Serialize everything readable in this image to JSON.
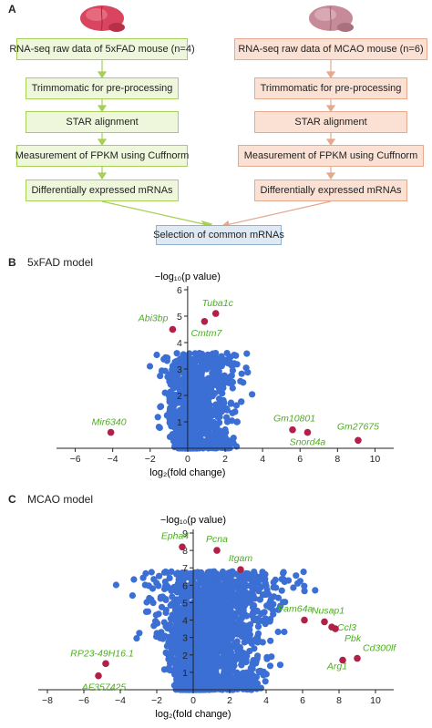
{
  "panel_a": {
    "letter": "A",
    "left_flow": [
      "RNA-seq raw data of 5xFAD mouse (n=4)",
      "Trimmomatic for pre-processing",
      "STAR alignment",
      "Measurement of FPKM using Cuffnorm",
      "Differentially expressed mRNAs"
    ],
    "right_flow": [
      "RNA-seq raw data of MCAO mouse (n=6)",
      "Trimmomatic for pre-processing",
      "STAR alignment",
      "Measurement of FPKM using Cuffnorm",
      "Differentially expressed mRNAs"
    ],
    "merge_box": "Selection of common mRNAs",
    "brain_colors": {
      "left": "#d9445e",
      "right": "#c78a99"
    }
  },
  "panel_b": {
    "letter": "B",
    "title": "5xFAD model"
  },
  "panel_c": {
    "letter": "C",
    "title": "MCAO model"
  },
  "colors": {
    "point": "#3b6fd4",
    "highlight": "#b2204a",
    "label": "#4caf1f",
    "green_fill": "#eef7dc",
    "pink_fill": "#fbe0d4",
    "blue_fill": "#dfe9f3"
  },
  "chart_data": [
    {
      "type": "scatter",
      "title": "",
      "xlabel": "log₂(fold change)",
      "ylabel": "−log₁₀(p value)",
      "xlim": [
        -7,
        11
      ],
      "ylim": [
        0,
        6
      ],
      "xticks": [
        -6,
        -4,
        -2,
        0,
        2,
        4,
        6,
        8,
        10
      ],
      "yticks": [
        1,
        2,
        3,
        4,
        5,
        6
      ],
      "grid": false,
      "highlighted": [
        {
          "gene": "Tuba1c",
          "x": 1.5,
          "y": 5.1
        },
        {
          "gene": "Cmtm7",
          "x": 0.9,
          "y": 4.8
        },
        {
          "gene": "Abi3bp",
          "x": -0.8,
          "y": 4.5
        },
        {
          "gene": "Mir6340",
          "x": -4.1,
          "y": 0.6
        },
        {
          "gene": "Gm10801",
          "x": 5.6,
          "y": 0.7
        },
        {
          "gene": "Snord4a",
          "x": 6.4,
          "y": 0.6
        },
        {
          "gene": "Gm27675",
          "x": 9.1,
          "y": 0.3
        }
      ]
    },
    {
      "type": "scatter",
      "title": "",
      "xlabel": "log₂(fold change)",
      "ylabel": "−log₁₀(p value)",
      "xlim": [
        -8.5,
        11
      ],
      "ylim": [
        0,
        9
      ],
      "xticks": [
        -8,
        -6,
        -4,
        -2,
        0,
        2,
        4,
        6,
        8,
        10
      ],
      "yticks": [
        1,
        2,
        3,
        4,
        5,
        6,
        7,
        8,
        9
      ],
      "grid": false,
      "highlighted": [
        {
          "gene": "Epha4",
          "x": -0.6,
          "y": 8.2
        },
        {
          "gene": "Pcna",
          "x": 1.3,
          "y": 8.0
        },
        {
          "gene": "Itgam",
          "x": 2.6,
          "y": 6.9
        },
        {
          "gene": "Fam64a",
          "x": 6.1,
          "y": 4.0
        },
        {
          "gene": "Nusap1",
          "x": 7.2,
          "y": 3.9
        },
        {
          "gene": "Ccl3",
          "x": 7.6,
          "y": 3.6
        },
        {
          "gene": "Pbk",
          "x": 7.8,
          "y": 3.5
        },
        {
          "gene": "Cd300lf",
          "x": 9.0,
          "y": 1.8
        },
        {
          "gene": "Arg1",
          "x": 8.2,
          "y": 1.7
        },
        {
          "gene": "RP23-49H16.1",
          "x": -4.8,
          "y": 1.5
        },
        {
          "gene": "AF357425",
          "x": -5.2,
          "y": 0.8
        }
      ]
    }
  ]
}
